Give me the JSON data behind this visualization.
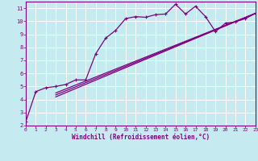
{
  "xlabel": "Windchill (Refroidissement éolien,°C)",
  "bg_color": "#c5eaf0",
  "line_color": "#800080",
  "grid_color": "#ffffff",
  "xlim": [
    0,
    23
  ],
  "ylim": [
    2,
    11.5
  ],
  "yticks": [
    2,
    3,
    4,
    5,
    6,
    7,
    8,
    9,
    10,
    11
  ],
  "xticks": [
    0,
    1,
    2,
    3,
    4,
    5,
    6,
    7,
    8,
    9,
    10,
    11,
    12,
    13,
    14,
    15,
    16,
    17,
    18,
    19,
    20,
    21,
    22,
    23
  ],
  "curve_x": [
    0,
    1,
    2,
    3,
    4,
    5,
    6,
    7,
    8,
    9,
    10,
    11,
    12,
    13,
    14,
    15,
    16,
    17,
    18,
    19,
    20,
    21,
    22,
    23
  ],
  "curve_y": [
    2.3,
    4.6,
    4.9,
    5.0,
    5.15,
    5.5,
    5.5,
    7.5,
    8.7,
    9.3,
    10.2,
    10.35,
    10.3,
    10.5,
    10.55,
    11.3,
    10.55,
    11.15,
    10.35,
    9.2,
    9.85,
    9.95,
    10.2,
    10.6
  ],
  "line1_x": [
    3,
    23
  ],
  "line1_y": [
    4.5,
    10.6
  ],
  "line2_x": [
    3,
    23
  ],
  "line2_y": [
    4.2,
    10.6
  ],
  "line3_x": [
    3,
    23
  ],
  "line3_y": [
    4.35,
    10.6
  ]
}
